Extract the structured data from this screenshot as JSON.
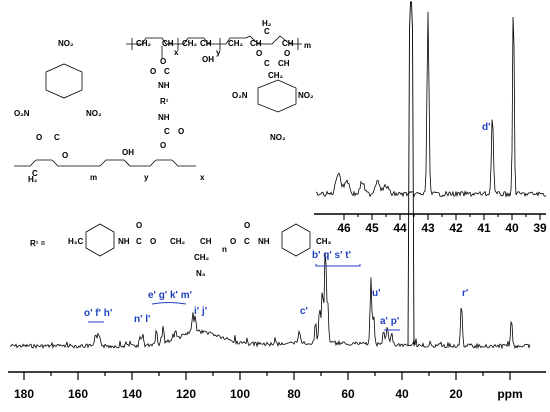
{
  "figure": {
    "axis_unit": "ppm",
    "main_ticks": [
      "180",
      "160",
      "140",
      "120",
      "100",
      "80",
      "60",
      "40",
      "20"
    ],
    "inset_ticks": [
      "46",
      "45",
      "44",
      "43",
      "42",
      "41",
      "40",
      "39"
    ],
    "peak_labels": [
      {
        "name": "peak-o-f-h",
        "text": "o' f' h'"
      },
      {
        "name": "peak-n-l",
        "text": "n' l'"
      },
      {
        "name": "peak-e-g-k-m",
        "text": "e' g' k' m'"
      },
      {
        "name": "peak-i-j",
        "text": "i' j'"
      },
      {
        "name": "peak-c",
        "text": "c'"
      },
      {
        "name": "peak-b-q-s-t",
        "text": "b' q' s' t'"
      },
      {
        "name": "peak-u",
        "text": "u'"
      },
      {
        "name": "peak-a-p",
        "text": "a' p'"
      },
      {
        "name": "peak-r",
        "text": "r'"
      },
      {
        "name": "peak-d-inset",
        "text": "d'"
      }
    ],
    "chem": {
      "r1_def": "R¹ =",
      "no2": "NO₂",
      "o2n": "O₂N",
      "oh": "OH",
      "nh": "NH",
      "h2": "H₂",
      "ch": "CH",
      "ch2": "CH₂",
      "ch3": "CH₃",
      "h3c": "H₃C",
      "o": "O",
      "c": "C",
      "n3": "N₃",
      "r1": "R¹",
      "sub_x": "x",
      "sub_y": "y",
      "sub_m": "m",
      "sub_n": "n"
    }
  }
}
